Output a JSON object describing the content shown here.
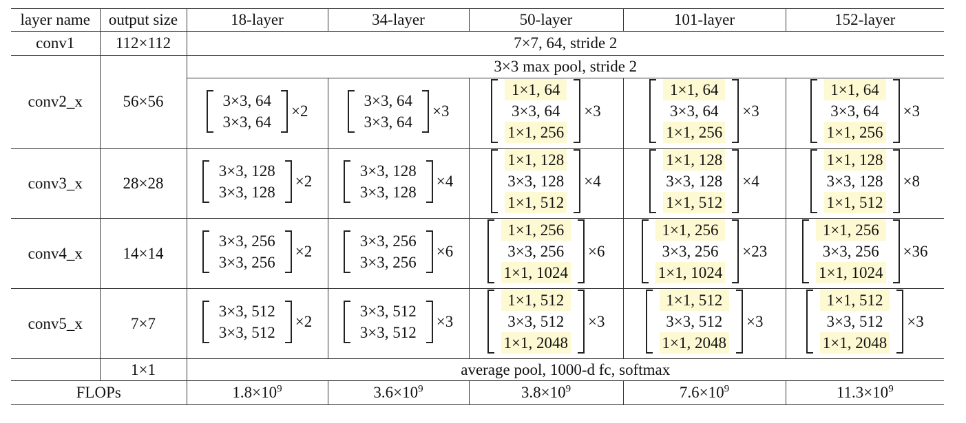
{
  "headers": [
    "layer name",
    "output size",
    "18-layer",
    "34-layer",
    "50-layer",
    "101-layer",
    "152-layer"
  ],
  "conv1": {
    "name": "conv1",
    "output": "112×112",
    "spec": "7×7, 64, stride 2"
  },
  "pool": {
    "spec": "3×3 max pool, stride 2"
  },
  "blocks": [
    {
      "name": "conv2_x",
      "output": "56×56",
      "basic": [
        "3×3, 64",
        "3×3, 64"
      ],
      "bottleneck": [
        "1×1, 64",
        "3×3, 64",
        "1×1, 256"
      ],
      "repeats": [
        "×2",
        "×3",
        "×3",
        "×3",
        "×3"
      ]
    },
    {
      "name": "conv3_x",
      "output": "28×28",
      "basic": [
        "3×3, 128",
        "3×3, 128"
      ],
      "bottleneck": [
        "1×1, 128",
        "3×3, 128",
        "1×1, 512"
      ],
      "repeats": [
        "×2",
        "×4",
        "×4",
        "×4",
        "×8"
      ]
    },
    {
      "name": "conv4_x",
      "output": "14×14",
      "basic": [
        "3×3, 256",
        "3×3, 256"
      ],
      "bottleneck": [
        "1×1, 256",
        "3×3, 256",
        "1×1, 1024"
      ],
      "repeats": [
        "×2",
        "×6",
        "×6",
        "×23",
        "×36"
      ]
    },
    {
      "name": "conv5_x",
      "output": "7×7",
      "basic": [
        "3×3, 512",
        "3×3, 512"
      ],
      "bottleneck": [
        "1×1, 512",
        "3×3, 512",
        "1×1, 2048"
      ],
      "repeats": [
        "×2",
        "×3",
        "×3",
        "×3",
        "×3"
      ]
    }
  ],
  "final": {
    "output": "1×1",
    "spec": "average pool, 1000-d fc, softmax"
  },
  "flops": {
    "label": "FLOPs",
    "values": [
      {
        "mantissa": "1.8×10",
        "exp": "9"
      },
      {
        "mantissa": "3.6×10",
        "exp": "9"
      },
      {
        "mantissa": "3.8×10",
        "exp": "9"
      },
      {
        "mantissa": "7.6×10",
        "exp": "9"
      },
      {
        "mantissa": "11.3×10",
        "exp": "9"
      }
    ]
  },
  "highlight_color": "#fdf9d2"
}
